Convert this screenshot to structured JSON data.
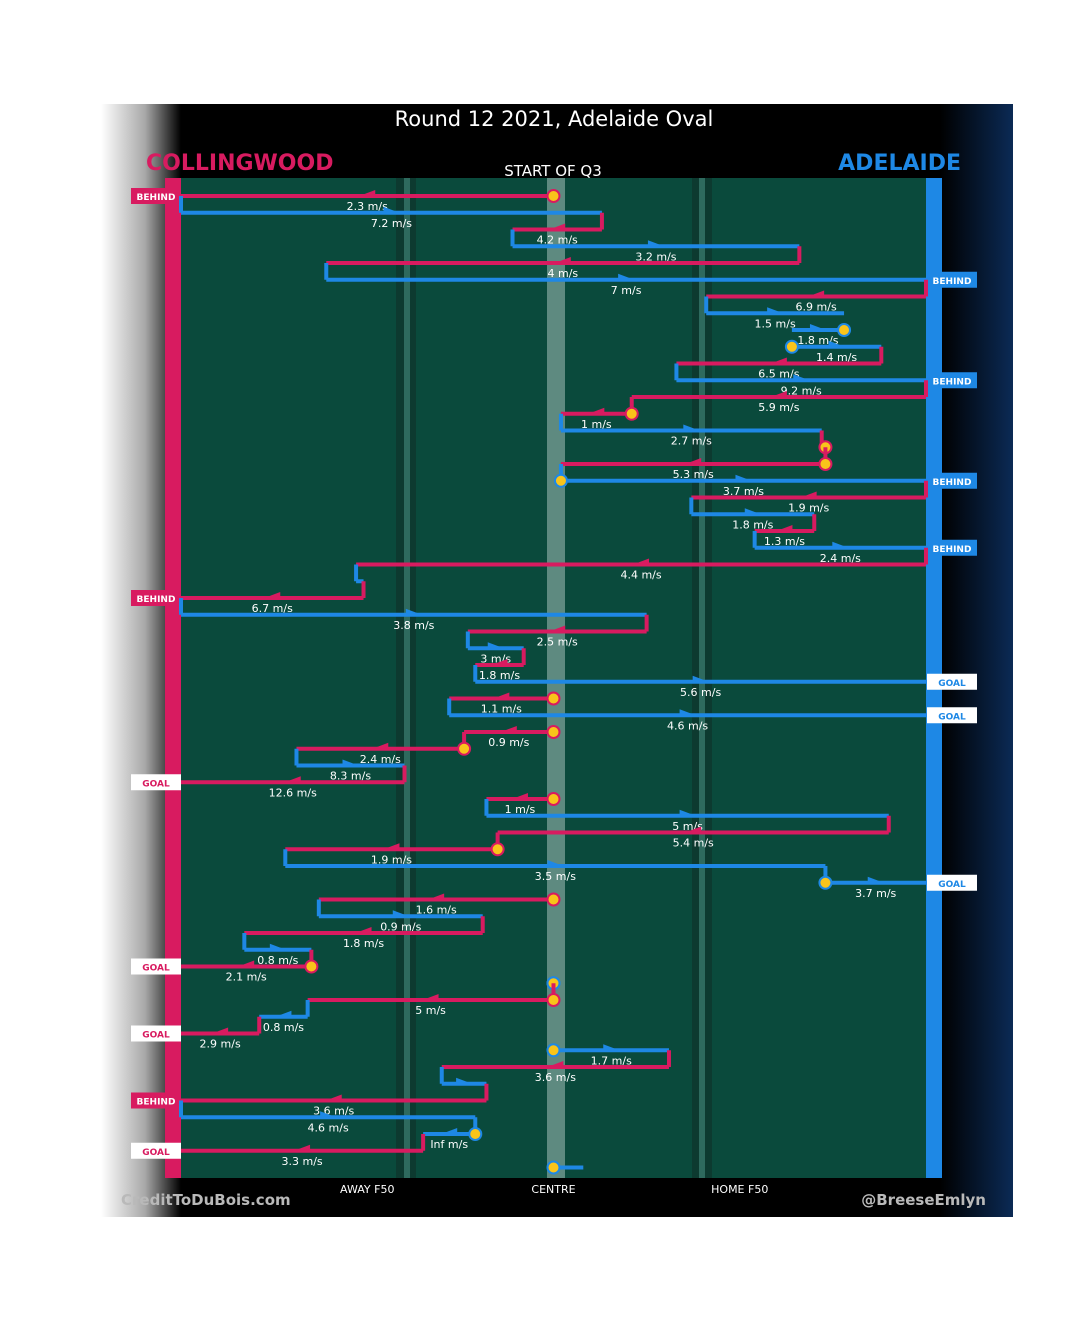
{
  "chart_data": {
    "type": "line",
    "title": "Round 12 2021, Adelaide Oval",
    "subtitle": "START OF Q3",
    "teams": {
      "left": {
        "name": "COLLINGWOOD",
        "color": "#d81b60"
      },
      "right": {
        "name": "ADELAIDE",
        "color": "#1e88e5"
      }
    },
    "x_axis": {
      "labels": [
        "AWAY F50",
        "CENTRE",
        "HOME F50"
      ],
      "positions": [
        -50,
        0,
        50
      ],
      "range": [
        -100,
        100
      ],
      "unit": "metres from centre (away = Collingwood end)"
    },
    "credits": {
      "left": "CreditToDuBois.com",
      "right": "@BreeseEmlyn"
    },
    "colors": {
      "field": "#0a4a3c",
      "ball_marker": "#f9c41a",
      "background": "#000000"
    },
    "chains": [
      {
        "team": "left",
        "from": 0,
        "to": -100,
        "speed": "2.3 m/s",
        "start": "ball",
        "outcome": "BEHIND"
      },
      {
        "team": "right",
        "from": -100,
        "to": 13,
        "speed": "7.2 m/s"
      },
      {
        "team": "left",
        "from": 13,
        "to": -11,
        "speed": "4.2 m/s"
      },
      {
        "team": "right",
        "from": -11,
        "to": 66,
        "speed": "3.2 m/s"
      },
      {
        "team": "left",
        "from": 66,
        "to": -61,
        "speed": "4 m/s"
      },
      {
        "team": "right",
        "from": -61,
        "to": 100,
        "speed": "7 m/s",
        "outcome": "BEHIND"
      },
      {
        "team": "left",
        "from": 100,
        "to": 41,
        "speed": "6.9 m/s"
      },
      {
        "team": "right",
        "from": 41,
        "to": 78,
        "speed": "1.5 m/s"
      },
      {
        "team": "right",
        "from": 64,
        "to": 78,
        "speed": "1.8 m/s",
        "end": "ball"
      },
      {
        "team": "right",
        "from": 64,
        "to": 88,
        "speed": "1.4 m/s",
        "start": "ball"
      },
      {
        "team": "left",
        "from": 88,
        "to": 33,
        "speed": "6.5 m/s"
      },
      {
        "team": "right",
        "from": 33,
        "to": 100,
        "speed": "9.2 m/s",
        "outcome": "BEHIND"
      },
      {
        "team": "left",
        "from": 100,
        "to": 21,
        "speed": "5.9 m/s"
      },
      {
        "team": "left",
        "from": 21,
        "to": 2,
        "speed": "1 m/s",
        "start": "ball"
      },
      {
        "team": "right",
        "from": 2,
        "to": 72,
        "speed": "2.7 m/s"
      },
      {
        "team": "left",
        "from": 72,
        "to": 73,
        "speed": "",
        "end": "ball"
      },
      {
        "team": "left",
        "from": 73,
        "to": 2,
        "speed": "5.3 m/s",
        "start": "ball"
      },
      {
        "team": "right",
        "from": 2,
        "to": 100,
        "speed": "3.7 m/s",
        "start": "ball",
        "outcome": "BEHIND"
      },
      {
        "team": "left",
        "from": 100,
        "to": 37,
        "speed": "1.9 m/s"
      },
      {
        "team": "right",
        "from": 37,
        "to": 70,
        "speed": "1.8 m/s"
      },
      {
        "team": "left",
        "from": 70,
        "to": 54,
        "speed": "1.3 m/s"
      },
      {
        "team": "right",
        "from": 54,
        "to": 100,
        "speed": "2.4 m/s",
        "outcome": "BEHIND"
      },
      {
        "team": "left",
        "from": 100,
        "to": -53,
        "speed": "4.4 m/s"
      },
      {
        "team": "right",
        "from": -53,
        "to": -51,
        "speed": ""
      },
      {
        "team": "left",
        "from": -51,
        "to": -100,
        "speed": "6.7 m/s",
        "outcome": "BEHIND"
      },
      {
        "team": "right",
        "from": -100,
        "to": 25,
        "speed": "3.8 m/s"
      },
      {
        "team": "left",
        "from": 25,
        "to": -23,
        "speed": "2.5 m/s"
      },
      {
        "team": "right",
        "from": -23,
        "to": -8,
        "speed": "3 m/s"
      },
      {
        "team": "left",
        "from": -8,
        "to": -21,
        "speed": "1.8 m/s"
      },
      {
        "team": "right",
        "from": -21,
        "to": 100,
        "speed": "5.6 m/s",
        "outcome": "GOAL"
      },
      {
        "team": "left",
        "from": 0,
        "to": -28,
        "speed": "1.1 m/s",
        "start": "ball"
      },
      {
        "team": "right",
        "from": -28,
        "to": 100,
        "speed": "4.6 m/s",
        "outcome": "GOAL"
      },
      {
        "team": "left",
        "from": 0,
        "to": -24,
        "speed": "0.9 m/s",
        "start": "ball"
      },
      {
        "team": "left",
        "from": -24,
        "to": -69,
        "speed": "2.4 m/s",
        "start": "ball"
      },
      {
        "team": "right",
        "from": -69,
        "to": -40,
        "speed": "8.3 m/s"
      },
      {
        "team": "left",
        "from": -40,
        "to": -100,
        "speed": "12.6 m/s",
        "outcome": "GOAL"
      },
      {
        "team": "left",
        "from": 0,
        "to": -18,
        "speed": "1 m/s",
        "start": "ball"
      },
      {
        "team": "right",
        "from": -18,
        "to": 90,
        "speed": "5 m/s"
      },
      {
        "team": "left",
        "from": 90,
        "to": -15,
        "speed": "5.4 m/s"
      },
      {
        "team": "left",
        "from": -15,
        "to": -72,
        "speed": "1.9 m/s",
        "start": "ball"
      },
      {
        "team": "right",
        "from": -72,
        "to": 73,
        "speed": "3.5 m/s"
      },
      {
        "team": "right",
        "from": 73,
        "to": 100,
        "speed": "3.7 m/s",
        "start": "ball",
        "outcome": "GOAL"
      },
      {
        "team": "left",
        "from": 0,
        "to": -63,
        "speed": "1.6 m/s",
        "start": "ball"
      },
      {
        "team": "right",
        "from": -63,
        "to": -19,
        "speed": "0.9 m/s"
      },
      {
        "team": "left",
        "from": -19,
        "to": -83,
        "speed": "1.8 m/s"
      },
      {
        "team": "right",
        "from": -83,
        "to": -65,
        "speed": "0.8 m/s"
      },
      {
        "team": "left",
        "from": -65,
        "to": -100,
        "speed": "2.1 m/s",
        "start": "ball",
        "outcome": "GOAL"
      },
      {
        "team": "right",
        "from": 0,
        "to": 0,
        "speed": "",
        "start": "ball",
        "end": "ball"
      },
      {
        "team": "left",
        "from": 0,
        "to": -66,
        "speed": "5 m/s",
        "start": "ball"
      },
      {
        "team": "right",
        "from": -66,
        "to": -79,
        "speed": "0.8 m/s"
      },
      {
        "team": "left",
        "from": -79,
        "to": -100,
        "speed": "2.9 m/s",
        "outcome": "GOAL"
      },
      {
        "team": "right",
        "from": 0,
        "to": 31,
        "speed": "1.7 m/s",
        "start": "ball"
      },
      {
        "team": "left",
        "from": 31,
        "to": -30,
        "speed": "3.6 m/s"
      },
      {
        "team": "right",
        "from": -30,
        "to": -18,
        "speed": ""
      },
      {
        "team": "left",
        "from": -18,
        "to": -100,
        "speed": "3.6 m/s",
        "outcome": "BEHIND"
      },
      {
        "team": "right",
        "from": -100,
        "to": -21,
        "speed": "4.6 m/s"
      },
      {
        "team": "right",
        "from": -21,
        "to": -35,
        "speed": "Inf m/s",
        "start": "ball"
      },
      {
        "team": "left",
        "from": -35,
        "to": -100,
        "speed": "3.3 m/s",
        "outcome": "GOAL"
      },
      {
        "team": "right",
        "from": 0,
        "to": 8,
        "speed": "",
        "start": "ball"
      }
    ]
  }
}
